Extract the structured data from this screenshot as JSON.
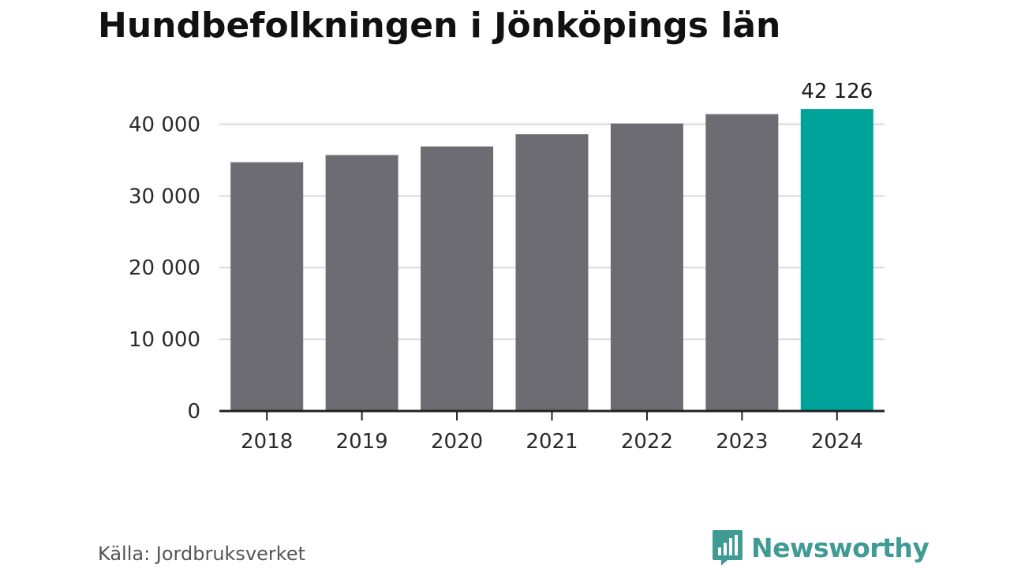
{
  "chart_data": {
    "type": "bar",
    "title": "Hundbefolkningen i Jönköpings län",
    "xlabel": "",
    "ylabel": "",
    "categories": [
      "2018",
      "2019",
      "2020",
      "2021",
      "2022",
      "2023",
      "2024"
    ],
    "values": [
      34700,
      35700,
      36900,
      38600,
      40100,
      41400,
      42126
    ],
    "value_labels": [
      "",
      "",
      "",
      "",
      "",
      "",
      "42 126"
    ],
    "ylim": [
      0,
      45000
    ],
    "yticks": [
      0,
      10000,
      20000,
      30000,
      40000
    ],
    "ytick_labels": [
      "0",
      "10 000",
      "20 000",
      "30 000",
      "40 000"
    ],
    "grid": true,
    "legend": "none",
    "colors": {
      "default_bar": "#6d6c72",
      "highlight_bar": "#00a39a",
      "grid": "#d9d9d9",
      "axis": "#222222"
    },
    "highlight_index": 6
  },
  "footer": {
    "source": "Källa: Jordbruksverket",
    "brand": "Newsworthy",
    "brand_color": "#3f9b93",
    "brand_icon": "speech-bubble-bar-chart-icon"
  }
}
